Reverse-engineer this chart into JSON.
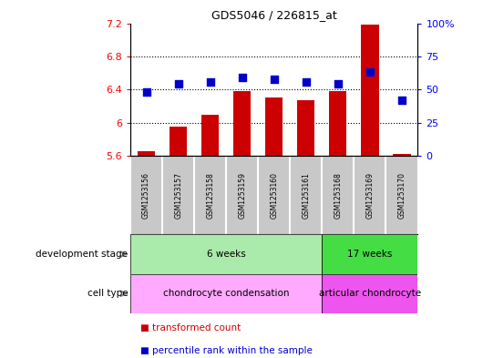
{
  "title": "GDS5046 / 226815_at",
  "samples": [
    "GSM1253156",
    "GSM1253157",
    "GSM1253158",
    "GSM1253159",
    "GSM1253160",
    "GSM1253161",
    "GSM1253168",
    "GSM1253169",
    "GSM1253170"
  ],
  "bar_values": [
    5.65,
    5.95,
    6.1,
    6.38,
    6.3,
    6.27,
    6.38,
    7.18,
    5.62
  ],
  "dot_values": [
    48,
    54,
    56,
    59,
    58,
    56,
    54,
    63,
    42
  ],
  "bar_base": 5.6,
  "ylim_left": [
    5.6,
    7.2
  ],
  "ylim_right": [
    0,
    100
  ],
  "yticks_left": [
    5.6,
    6.0,
    6.4,
    6.8,
    7.2
  ],
  "ytick_labels_left": [
    "5.6",
    "6",
    "6.4",
    "6.8",
    "7.2"
  ],
  "yticks_right": [
    0,
    25,
    50,
    75,
    100
  ],
  "ytick_labels_right": [
    "0",
    "25",
    "50",
    "75",
    "100%"
  ],
  "grid_values": [
    6.0,
    6.4,
    6.8
  ],
  "bar_color": "#CC0000",
  "dot_color": "#0000CC",
  "development_stage_groups": [
    {
      "label": "6 weeks",
      "start": 0,
      "end": 6,
      "color": "#AAEAAA"
    },
    {
      "label": "17 weeks",
      "start": 6,
      "end": 9,
      "color": "#44DD44"
    }
  ],
  "cell_type_groups": [
    {
      "label": "chondrocyte condensation",
      "start": 0,
      "end": 6,
      "color": "#FFAAFF"
    },
    {
      "label": "articular chondrocyte",
      "start": 6,
      "end": 9,
      "color": "#EE55EE"
    }
  ],
  "legend_items": [
    {
      "label": "transformed count",
      "color": "#CC0000"
    },
    {
      "label": "percentile rank within the sample",
      "color": "#0000CC"
    }
  ],
  "row_label_dev": "development stage",
  "row_label_cell": "cell type",
  "sample_area_color": "#C8C8C8",
  "fig_width": 5.3,
  "fig_height": 3.93,
  "dpi": 100
}
